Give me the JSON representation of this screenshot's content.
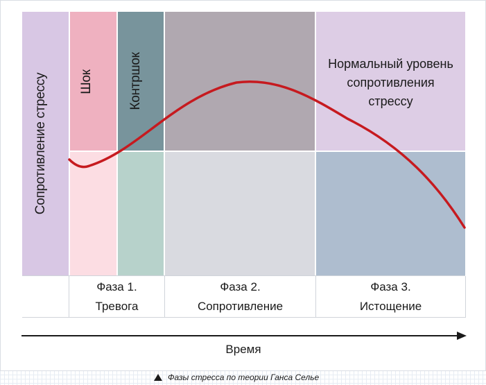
{
  "diagram": {
    "y_axis_label": "Сопротивление стрессу",
    "shock_label": "Шок",
    "countershock_label": "Контршок",
    "normal_level_label": "Нормальный уровень\nсопротивления\nстрессу",
    "phases": [
      {
        "label": "Фаза 1.\nТревога"
      },
      {
        "label": "Фаза 2.\nСопротивление"
      },
      {
        "label": "Фаза 3.\nИстощение"
      }
    ],
    "x_axis_label": "Время",
    "colors": {
      "axis_band": "#d8c7e4",
      "shock_upper": "#efb1c0",
      "shock_lower": "#fcdde3",
      "countershock_upper": "#78949c",
      "countershock_lower": "#b7d2cb",
      "resistance_upper": "#b0a8b0",
      "resistance_lower": "#d9dae0",
      "exhaustion_upper": "#ddcde5",
      "exhaustion_lower": "#aebdcf",
      "curve": "#c61a1f",
      "grid_line": "#ffffff"
    }
  },
  "caption": "Фазы стресса по теории Ганса Селье"
}
